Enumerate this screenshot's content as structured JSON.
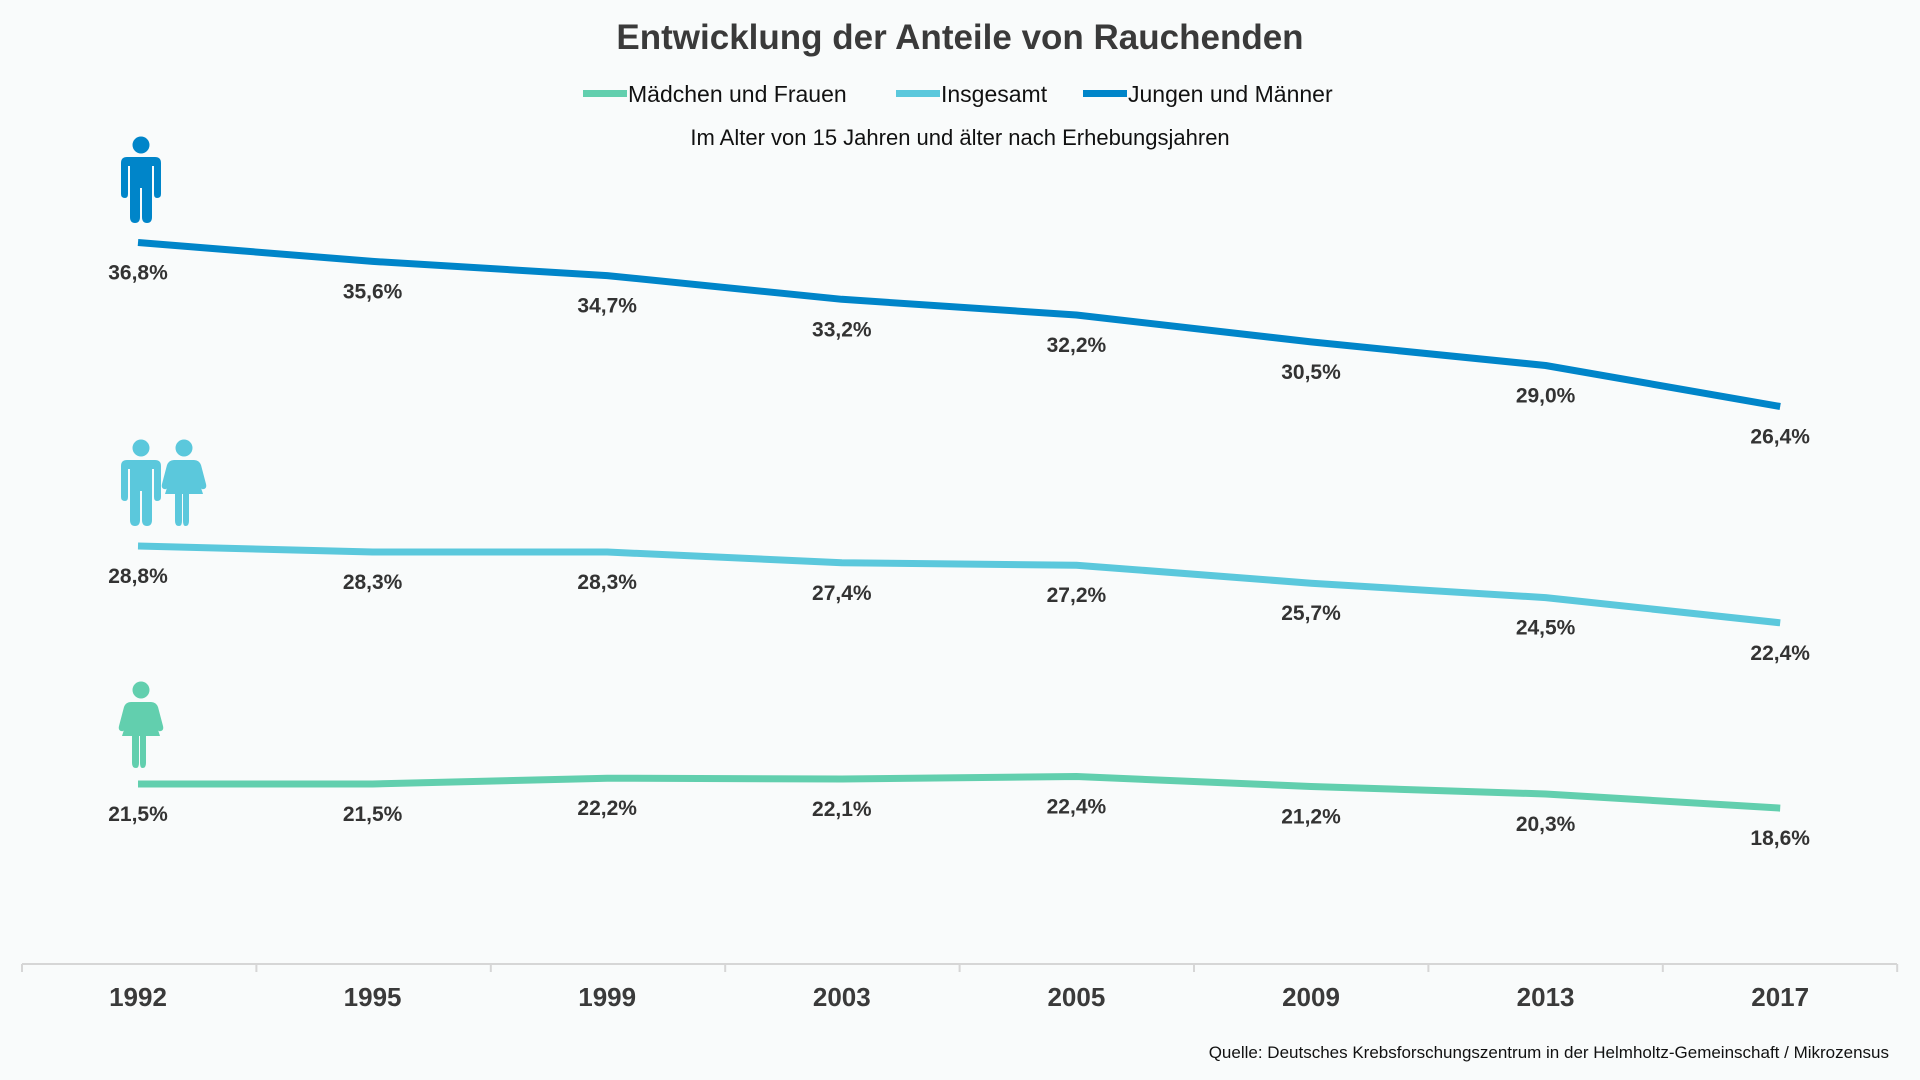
{
  "chart_data": {
    "type": "line",
    "title": "Entwicklung der Anteile von Rauchenden",
    "subtitle": "Im Alter von 15 Jahren und älter nach Erhebungsjahren",
    "categories": [
      "1992",
      "1995",
      "1999",
      "2003",
      "2005",
      "2009",
      "2013",
      "2017"
    ],
    "series": [
      {
        "name": "Mädchen und Frauen",
        "color": "#62cfae",
        "icon": "woman-icon",
        "values": [
          21.5,
          21.5,
          22.2,
          22.1,
          22.4,
          21.2,
          20.3,
          18.6
        ],
        "labels": [
          "21,5%",
          "21,5%",
          "22,2%",
          "22,1%",
          "22,4%",
          "21,2%",
          "20,3%",
          "18,6%"
        ]
      },
      {
        "name": "Insgesamt",
        "color": "#5bc8dc",
        "icon": "man-and-woman-icon",
        "values": [
          28.8,
          28.3,
          28.3,
          27.4,
          27.2,
          25.7,
          24.5,
          22.4
        ],
        "labels": [
          "28,8%",
          "28,3%",
          "28,3%",
          "27,4%",
          "27,2%",
          "25,7%",
          "24,5%",
          "22,4%"
        ]
      },
      {
        "name": "Jungen und Männer",
        "color": "#0085c9",
        "icon": "man-icon",
        "values": [
          36.8,
          35.6,
          34.7,
          33.2,
          32.2,
          30.5,
          29.0,
          26.4
        ],
        "labels": [
          "36,8%",
          "35,6%",
          "34,7%",
          "33,2%",
          "32,2%",
          "30,5%",
          "29,0%",
          "26,4%"
        ]
      }
    ],
    "legend_position": "top",
    "grid": false,
    "y_axis_visible": false,
    "source": "Quelle: Deutsches Krebsforschungszentrum in der Helmholtz-Gemeinschaft / Mikrozensus"
  }
}
